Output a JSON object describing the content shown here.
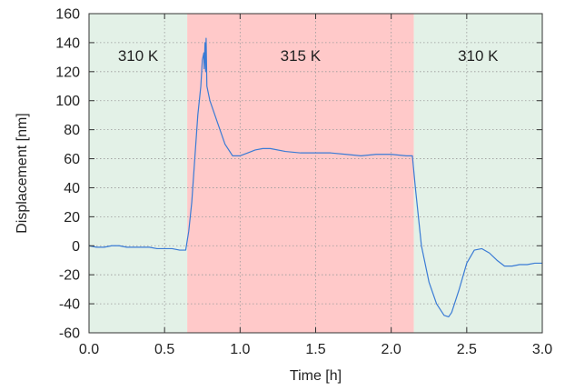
{
  "chart_data": {
    "type": "line",
    "xlabel": "Time [h]",
    "ylabel": "Displacement [nm]",
    "xlim": [
      0.0,
      3.0
    ],
    "ylim": [
      -60,
      160
    ],
    "xticks": [
      "0.0",
      "0.5",
      "1.0",
      "1.5",
      "2.0",
      "2.5",
      "3.0"
    ],
    "yticks": [
      "-60",
      "-40",
      "-20",
      "0",
      "20",
      "40",
      "60",
      "80",
      "100",
      "120",
      "140",
      "160"
    ],
    "grid": true,
    "regions": [
      {
        "label": "310 K",
        "x_start": 0.0,
        "x_end": 0.65,
        "color": "#e3f1e7"
      },
      {
        "label": "315 K",
        "x_start": 0.65,
        "x_end": 2.15,
        "color": "#ffc9c9"
      },
      {
        "label": "310 K",
        "x_start": 2.15,
        "x_end": 3.0,
        "color": "#e3f1e7"
      }
    ],
    "series": [
      {
        "color": "#3a7bd5",
        "points": [
          [
            0.0,
            0
          ],
          [
            0.05,
            -1
          ],
          [
            0.1,
            -1
          ],
          [
            0.15,
            0
          ],
          [
            0.2,
            0
          ],
          [
            0.25,
            -1
          ],
          [
            0.3,
            -1
          ],
          [
            0.35,
            -1
          ],
          [
            0.4,
            -1
          ],
          [
            0.45,
            -2
          ],
          [
            0.5,
            -2
          ],
          [
            0.55,
            -2
          ],
          [
            0.6,
            -3
          ],
          [
            0.63,
            -3
          ],
          [
            0.64,
            -3
          ],
          [
            0.66,
            10
          ],
          [
            0.68,
            30
          ],
          [
            0.7,
            60
          ],
          [
            0.72,
            90
          ],
          [
            0.74,
            110
          ],
          [
            0.75,
            128
          ],
          [
            0.76,
            133
          ],
          [
            0.762,
            122
          ],
          [
            0.768,
            140
          ],
          [
            0.772,
            120
          ],
          [
            0.775,
            143
          ],
          [
            0.78,
            110
          ],
          [
            0.8,
            100
          ],
          [
            0.85,
            85
          ],
          [
            0.9,
            70
          ],
          [
            0.95,
            62
          ],
          [
            1.0,
            62
          ],
          [
            1.05,
            64
          ],
          [
            1.1,
            66
          ],
          [
            1.15,
            67
          ],
          [
            1.2,
            67
          ],
          [
            1.3,
            65
          ],
          [
            1.4,
            64
          ],
          [
            1.5,
            64
          ],
          [
            1.6,
            64
          ],
          [
            1.7,
            63
          ],
          [
            1.8,
            62
          ],
          [
            1.9,
            63
          ],
          [
            2.0,
            63
          ],
          [
            2.1,
            62
          ],
          [
            2.14,
            62
          ],
          [
            2.16,
            40
          ],
          [
            2.2,
            0
          ],
          [
            2.25,
            -25
          ],
          [
            2.3,
            -40
          ],
          [
            2.35,
            -48
          ],
          [
            2.38,
            -49
          ],
          [
            2.4,
            -46
          ],
          [
            2.45,
            -30
          ],
          [
            2.5,
            -12
          ],
          [
            2.55,
            -3
          ],
          [
            2.6,
            -2
          ],
          [
            2.65,
            -5
          ],
          [
            2.7,
            -10
          ],
          [
            2.75,
            -14
          ],
          [
            2.8,
            -14
          ],
          [
            2.85,
            -13
          ],
          [
            2.9,
            -13
          ],
          [
            2.95,
            -12
          ],
          [
            3.0,
            -12
          ]
        ]
      }
    ]
  }
}
